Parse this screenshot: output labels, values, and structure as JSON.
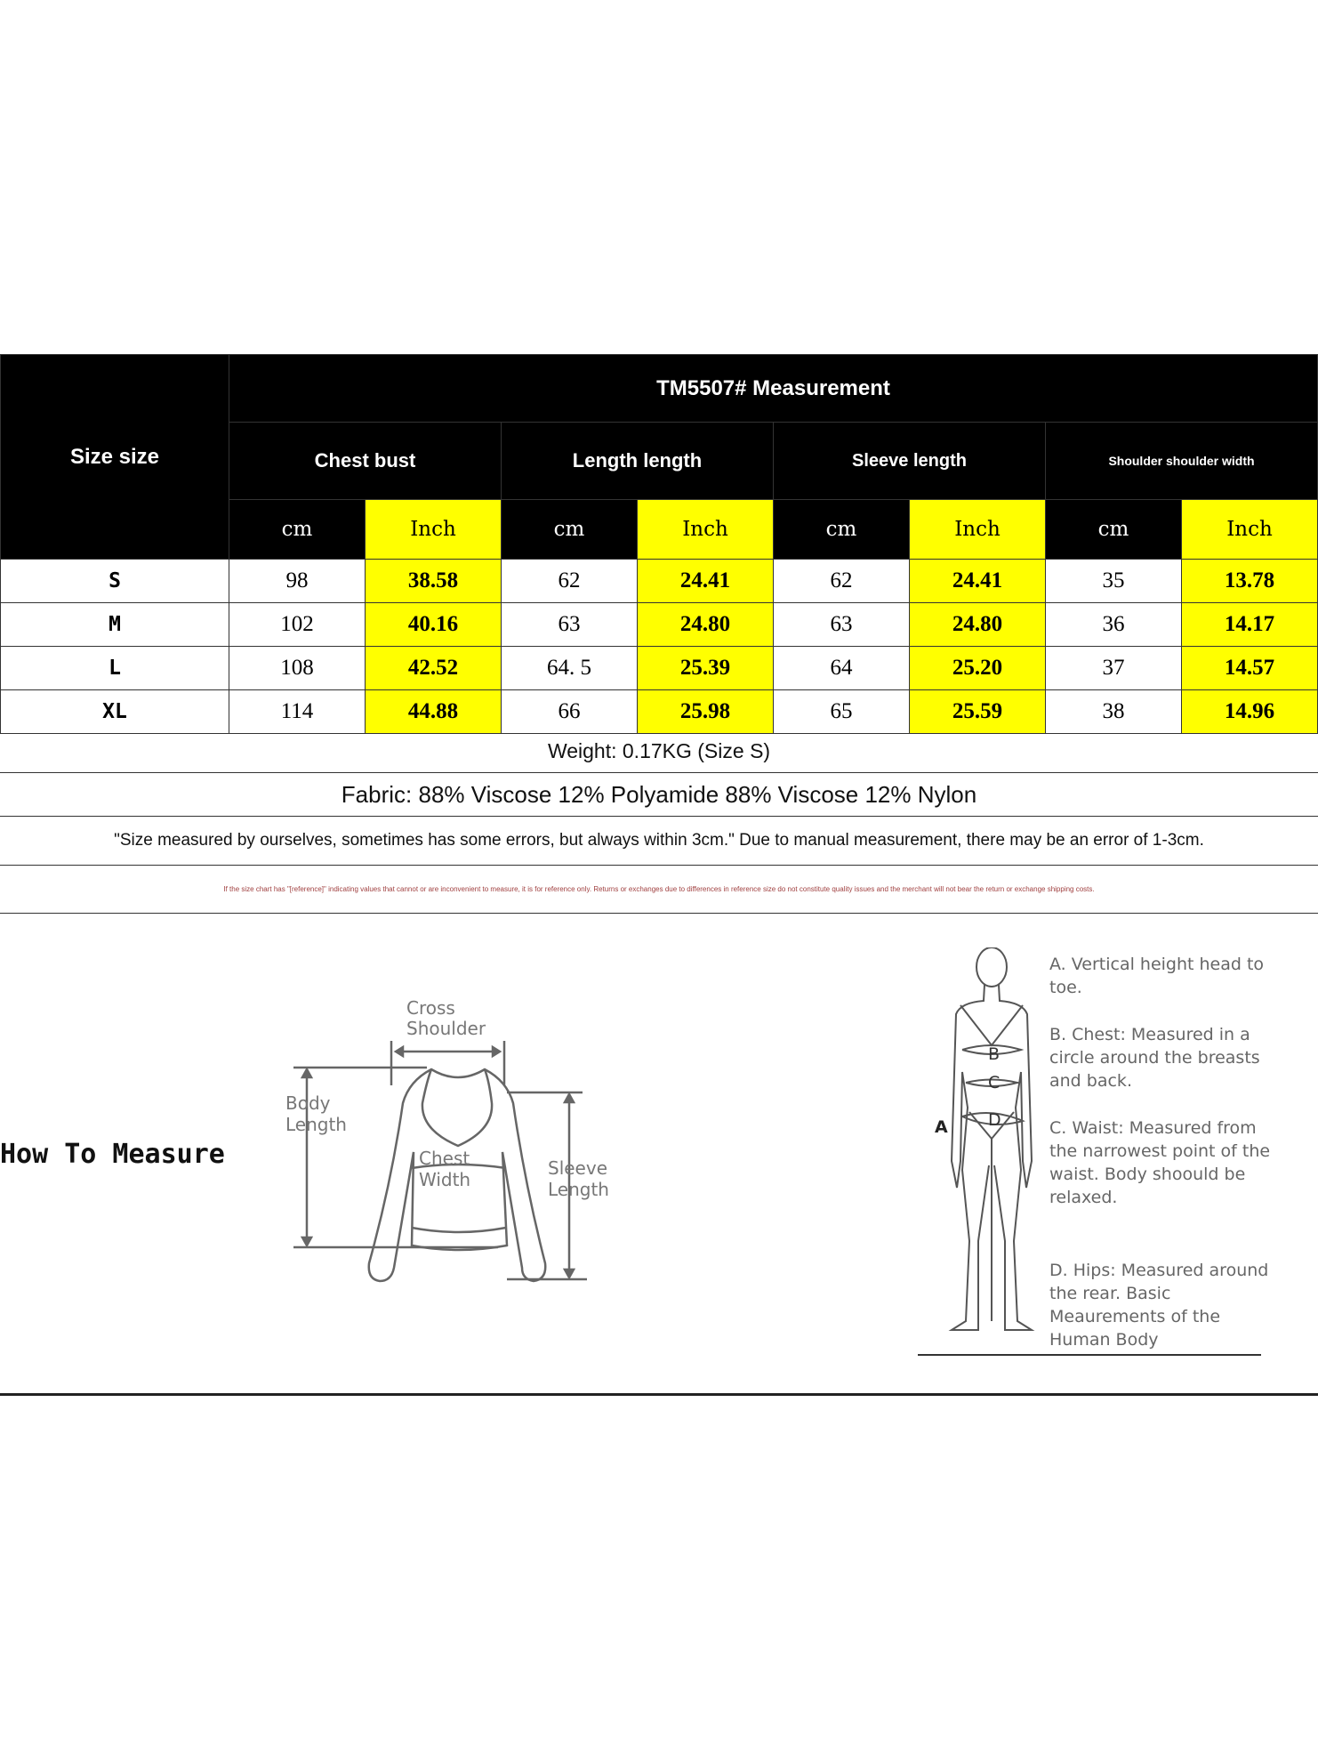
{
  "table": {
    "size_header": "Size size",
    "title": "TM5507# Measurement",
    "groups": [
      "Chest bust",
      "Length length",
      "Sleeve length",
      "Shoulder shoulder width"
    ],
    "units": {
      "cm": "cm",
      "inch": "Inch"
    },
    "rows": [
      {
        "size": "S",
        "v": [
          "98",
          "38.58",
          "62",
          "24.41",
          "62",
          "24.41",
          "35",
          "13.78"
        ]
      },
      {
        "size": "M",
        "v": [
          "102",
          "40.16",
          "63",
          "24.80",
          "63",
          "24.80",
          "36",
          "14.17"
        ]
      },
      {
        "size": "L",
        "v": [
          "108",
          "42.52",
          "64. 5",
          "25.39",
          "64",
          "25.20",
          "37",
          "14.57"
        ]
      },
      {
        "size": "XL",
        "v": [
          "114",
          "44.88",
          "66",
          "25.98",
          "65",
          "25.59",
          "38",
          "14.96"
        ]
      }
    ],
    "highlight_color": "#ffff00"
  },
  "weight": "Weight: 0.17KG (Size S)",
  "fabric": "Fabric: 88% Viscose 12% Polyamide 88% Viscose 12% Nylon",
  "note": "\"Size measured by ourselves, sometimes has some errors, but always within 3cm.\" Due to manual measurement, there may be an error of 1-3cm.",
  "disclaimer": "If the size chart has \"[reference]\" indicating values that cannot or are inconvenient to measure, it is for reference only. Returns or exchanges due to differences in reference size do not constitute quality issues and the merchant will not bear the return or exchange shipping costs.",
  "how_to_measure": "How To Measure",
  "garment_labels": {
    "cross": "Cross",
    "shoulder": "Shoulder",
    "body": "Body",
    "length": "Length",
    "chest": "Chest",
    "width": "Width",
    "sleeve": "Sleeve",
    "sleeve_length": "Length"
  },
  "body_letters": [
    "A",
    "B",
    "C",
    "D"
  ],
  "body_notes": [
    "A. Vertical height head to toe.",
    "B. Chest: Measured in a circle around the breasts and back.",
    "C. Waist: Measured from the narrowest point of the waist. Body shoould be relaxed.",
    "D. Hips: Measured around the rear. Basic Meaurements of the Human Body"
  ]
}
